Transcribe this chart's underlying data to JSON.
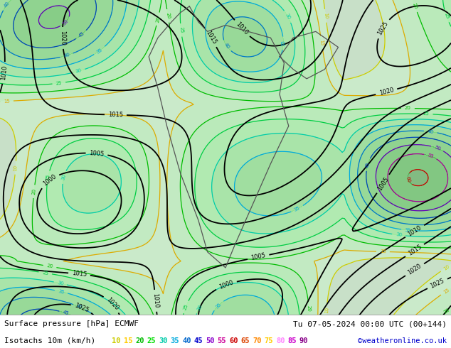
{
  "title_line1": "Surface pressure [hPa] ECMWF",
  "title_line1_right": "Tu 07-05-2024 00:00 UTC (00+144)",
  "title_line2_left": "Isotachs 10m (km/h)",
  "copyright": "©weatheronline.co.uk",
  "isotach_values": [
    10,
    15,
    20,
    25,
    30,
    35,
    40,
    45,
    50,
    55,
    60,
    65,
    70,
    75,
    80,
    85,
    90
  ],
  "isotach_colors": [
    "#cccc00",
    "#ffcc00",
    "#00bb00",
    "#00dd00",
    "#00ccaa",
    "#00aadd",
    "#0066cc",
    "#0000cc",
    "#8800cc",
    "#cc0099",
    "#cc0000",
    "#dd4400",
    "#ff8800",
    "#ffcc00",
    "#ff88ff",
    "#cc00cc",
    "#880088"
  ],
  "bg_color": "#d8d8d8",
  "map_bg": "#c8e0c8",
  "bottom_bar_color": "#ffffff",
  "figsize": [
    6.34,
    4.9
  ],
  "dpi": 100
}
